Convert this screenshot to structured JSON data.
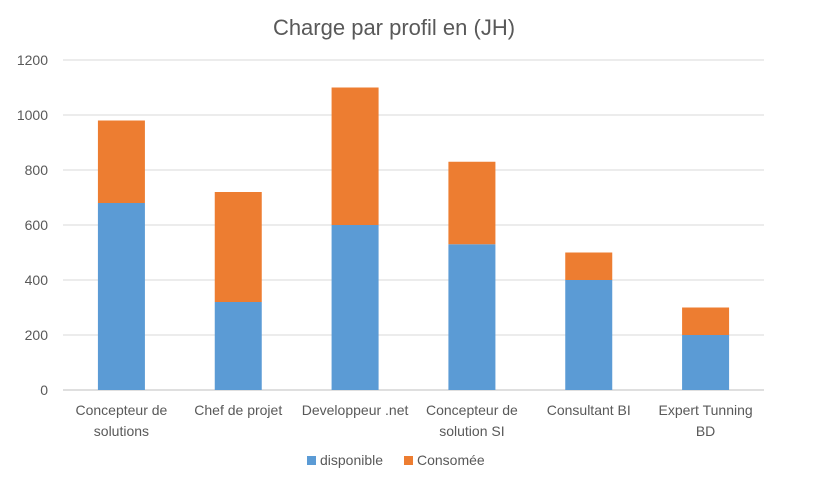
{
  "chart_data": {
    "type": "bar",
    "stacked": true,
    "title": "Charge par profil en (JH)",
    "xlabel": "",
    "ylabel": "",
    "ylim": [
      0,
      1200
    ],
    "yticks": [
      0,
      200,
      400,
      600,
      800,
      1000,
      1200
    ],
    "grid": true,
    "legend_position": "bottom",
    "categories": [
      [
        "Concepteur de",
        "solutions"
      ],
      [
        "Chef de projet"
      ],
      [
        "Developpeur .net"
      ],
      [
        "Concepteur de",
        "solution SI"
      ],
      [
        "Consultant BI"
      ],
      [
        "Expert Tunning",
        "BD"
      ]
    ],
    "series": [
      {
        "name": "disponible",
        "color": "#5b9bd5",
        "values": [
          680,
          320,
          600,
          530,
          400,
          200
        ]
      },
      {
        "name": "Consomée",
        "color": "#ed7d31",
        "values": [
          300,
          400,
          500,
          300,
          100,
          100
        ]
      }
    ]
  }
}
